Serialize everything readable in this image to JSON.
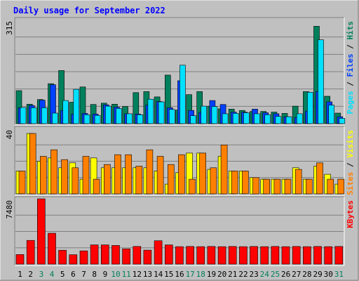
{
  "title": "Daily usage for September 2022",
  "colors": {
    "background": "#c0c0c0",
    "title": "#0000ff",
    "hits": "#00805c",
    "files": "#0040ff",
    "pages": "#00e0ff",
    "visits": "#ffff00",
    "sites": "#ff8000",
    "kbytes": "#ff0000",
    "weekend": "#00805c",
    "weekday": "#000000"
  },
  "chart_data": [
    {
      "type": "bar",
      "name": "hits-files-pages",
      "max_label": "315",
      "ylim": [
        0,
        315
      ],
      "legend": [
        "Pages",
        "Files",
        "Hits"
      ],
      "series": [
        {
          "name": "Hits",
          "values": [
            100,
            59,
            73,
            121,
            161,
            65,
            111,
            58,
            62,
            59,
            52,
            94,
            97,
            81,
            147,
            41,
            88,
            97,
            53,
            45,
            44,
            40,
            37,
            37,
            35,
            31,
            53,
            97,
            295,
            83,
            32
          ]
        },
        {
          "name": "Files",
          "values": [
            48,
            55,
            71,
            118,
            40,
            29,
            31,
            29,
            57,
            50,
            30,
            29,
            56,
            67,
            48,
            130,
            40,
            34,
            70,
            58,
            35,
            35,
            44,
            33,
            30,
            21,
            19,
            38,
            98,
            66,
            21
          ]
        },
        {
          "name": "Pages",
          "values": [
            49,
            48,
            48,
            32,
            70,
            104,
            27,
            25,
            53,
            46,
            30,
            27,
            74,
            66,
            43,
            177,
            24,
            53,
            52,
            30,
            31,
            33,
            30,
            27,
            22,
            21,
            30,
            95,
            254,
            56,
            16
          ]
        }
      ],
      "x": [
        1,
        2,
        3,
        4,
        5,
        6,
        7,
        8,
        9,
        10,
        11,
        12,
        13,
        14,
        15,
        16,
        17,
        18,
        19,
        20,
        21,
        22,
        23,
        24,
        25,
        26,
        27,
        28,
        29,
        30,
        31
      ]
    },
    {
      "type": "bar",
      "name": "visits-sites",
      "max_label": "40",
      "ylim": [
        0,
        40
      ],
      "legend": [
        "Sites",
        "Visits"
      ],
      "series": [
        {
          "name": "Visits",
          "values": [
            14,
            37,
            20,
            22,
            16,
            19,
            9,
            22,
            16,
            16,
            16,
            16,
            16,
            14,
            6,
            13,
            25,
            25,
            15,
            23,
            14,
            14,
            10,
            9,
            9,
            9,
            16,
            9,
            17,
            12,
            6
          ]
        },
        {
          "name": "Sites",
          "values": [
            14,
            37,
            23,
            27,
            21,
            16,
            23,
            9,
            18,
            24,
            24,
            17,
            27,
            23,
            18,
            24,
            9,
            25,
            16,
            30,
            14,
            14,
            10,
            9,
            9,
            9,
            15,
            9,
            19,
            9,
            9
          ]
        }
      ],
      "x": [
        1,
        2,
        3,
        4,
        5,
        6,
        7,
        8,
        9,
        10,
        11,
        12,
        13,
        14,
        15,
        16,
        17,
        18,
        19,
        20,
        21,
        22,
        23,
        24,
        25,
        26,
        27,
        28,
        29,
        30,
        31
      ]
    },
    {
      "type": "bar",
      "name": "kbytes",
      "max_label": "7480",
      "ylim": [
        0,
        7480
      ],
      "legend": [
        "KBytes"
      ],
      "series": [
        {
          "name": "KBytes",
          "values": [
            1100,
            2720,
            7480,
            3540,
            1590,
            1080,
            1520,
            2200,
            2200,
            2140,
            1750,
            2030,
            1600,
            2680,
            2200,
            2000,
            2030,
            2000,
            2030,
            2000,
            2030,
            2000,
            2030,
            2000,
            2030,
            2000,
            2030,
            2000,
            2030,
            2000,
            2030
          ]
        }
      ],
      "x": [
        1,
        2,
        3,
        4,
        5,
        6,
        7,
        8,
        9,
        10,
        11,
        12,
        13,
        14,
        15,
        16,
        17,
        18,
        19,
        20,
        21,
        22,
        23,
        24,
        25,
        26,
        27,
        28,
        29,
        30,
        31
      ]
    }
  ],
  "x_labels": [
    "1",
    "2",
    "3",
    "4",
    "5",
    "6",
    "7",
    "8",
    "9",
    "10",
    "11",
    "12",
    "13",
    "14",
    "15",
    "16",
    "17",
    "18",
    "19",
    "20",
    "21",
    "22",
    "23",
    "24",
    "25",
    "26",
    "27",
    "28",
    "29",
    "30",
    "31"
  ],
  "weekend_days": [
    3,
    4,
    10,
    11,
    17,
    18,
    24,
    25,
    31
  ]
}
